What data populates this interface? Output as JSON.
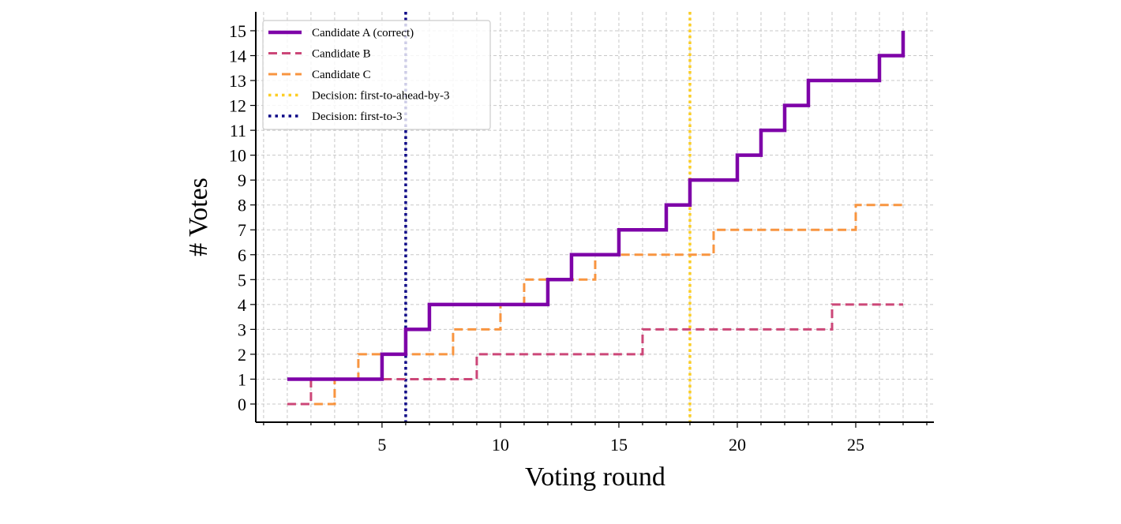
{
  "chart_data": {
    "type": "line",
    "drawstyle": "steps-post",
    "xlabel": "Voting round",
    "ylabel": "# Votes",
    "xlim": [
      -0.33,
      28.3
    ],
    "ylim": [
      -0.73,
      15.76
    ],
    "xticks": [
      5,
      10,
      15,
      20,
      25
    ],
    "yticks": [
      0,
      1,
      2,
      3,
      4,
      5,
      6,
      7,
      8,
      9,
      10,
      11,
      12,
      13,
      14,
      15
    ],
    "grid": true,
    "legend_position": "top-left",
    "x": [
      1,
      2,
      3,
      4,
      5,
      6,
      7,
      8,
      9,
      10,
      11,
      12,
      13,
      14,
      15,
      16,
      17,
      18,
      19,
      20,
      21,
      22,
      23,
      24,
      25,
      26,
      27
    ],
    "series": [
      {
        "name": "Candidate A (correct)",
        "color": "#7e03a8",
        "style": "solid",
        "values": [
          1,
          1,
          1,
          1,
          2,
          3,
          4,
          4,
          4,
          4,
          4,
          5,
          6,
          6,
          7,
          7,
          8,
          9,
          9,
          10,
          11,
          12,
          13,
          13,
          13,
          14,
          15
        ]
      },
      {
        "name": "Candidate B",
        "color": "#cc4778",
        "style": "dashed",
        "values": [
          0,
          1,
          1,
          1,
          1,
          1,
          1,
          1,
          2,
          2,
          2,
          2,
          2,
          2,
          2,
          3,
          3,
          3,
          3,
          3,
          3,
          3,
          3,
          4,
          4,
          4,
          4
        ]
      },
      {
        "name": "Candidate C",
        "color": "#f89540",
        "style": "dashed",
        "values": [
          0,
          0,
          1,
          2,
          2,
          2,
          2,
          3,
          3,
          4,
          5,
          5,
          5,
          6,
          6,
          6,
          6,
          6,
          7,
          7,
          7,
          7,
          7,
          7,
          8,
          8,
          8
        ]
      }
    ],
    "vlines": [
      {
        "name": "Decision: first-to-ahead-by-3",
        "x": 18,
        "color": "#fcce25",
        "style": "dotted"
      },
      {
        "name": "Decision: first-to-3",
        "x": 6,
        "color": "#0d0887",
        "style": "dotted"
      }
    ]
  }
}
